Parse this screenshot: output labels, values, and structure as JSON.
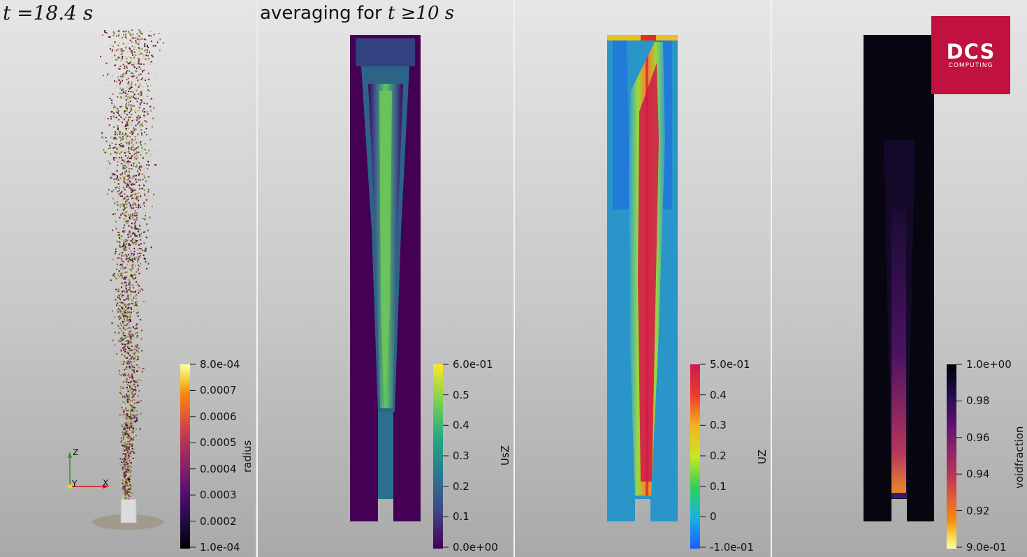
{
  "header": {
    "time_label": "t =18.4 s",
    "averaging_label": "averaging for",
    "averaging_expr": "t ≥10 s"
  },
  "logo": {
    "name": "DCS",
    "subtitle": "COMPUTING",
    "color": "#c0113f"
  },
  "axes_triad": {
    "z": "Z",
    "y": "Y",
    "x": "X"
  },
  "colorbars": [
    {
      "title": "radius",
      "colormap": "inferno",
      "min_label": "1.0e-04",
      "max_label": "8.0e-04",
      "labels": [
        "8.0e-04",
        "0.0007",
        "0.0006",
        "0.0005",
        "0.0004",
        "0.0003",
        "0.0002",
        "1.0e-04"
      ]
    },
    {
      "title": "UsZ",
      "colormap": "viridis",
      "min_label": "0.0e+00",
      "max_label": "6.0e-01",
      "labels": [
        "6.0e-01",
        "0.5",
        "0.4",
        "0.3",
        "0.2",
        "0.1",
        "0.0e+00"
      ]
    },
    {
      "title": "UZ",
      "colormap": "rainbow",
      "min_label": "-1.0e-01",
      "max_label": "5.0e-01",
      "labels": [
        "5.0e-01",
        "0.4",
        "0.3",
        "0.2",
        "0.1",
        "0",
        "-1.0e-01"
      ]
    },
    {
      "title": "voidfraction",
      "colormap": "inferno",
      "min_label": "9.0e-01",
      "max_label": "1.0e+00",
      "labels": [
        "1.0e+00",
        "0.98",
        "0.96",
        "0.94",
        "0.92",
        "9.0e-01"
      ]
    }
  ],
  "colors": {
    "viridis_dark": "#440154",
    "viridis_mid": "#21918c",
    "viridis_light": "#fde725",
    "rainbow_low": "#1f5bff",
    "rainbow_mid": "#2ecf5a",
    "rainbow_high": "#d0184a",
    "inferno_dark": "#000004",
    "inferno_light": "#fcffa4"
  }
}
